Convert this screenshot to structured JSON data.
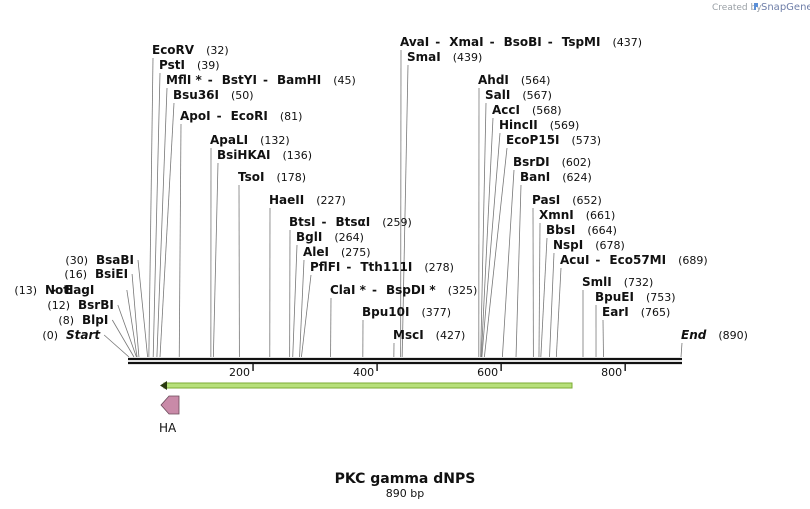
{
  "credit": {
    "created_by": "Created by",
    "brand": "SnapGene"
  },
  "map": {
    "title": "PKC gamma dNPS",
    "length_label": "890 bp",
    "length": 890,
    "ticks": [
      200,
      400,
      600,
      800
    ],
    "features": [
      {
        "name": "HA",
        "type": "arrow",
        "direction": "left",
        "color": "#c98aa8"
      }
    ],
    "orf": {
      "direction": "left",
      "color": "#a4d65e"
    }
  },
  "sites": [
    {
      "lines": [
        {
          "segs": [
            "Start"
          ],
          "italic": true
        }
      ],
      "pos": "(0)",
      "side": "left",
      "bp": 0
    },
    {
      "lines": [
        {
          "segs": [
            "BlpI"
          ]
        }
      ],
      "pos": "(8)",
      "side": "left",
      "bp": 8
    },
    {
      "lines": [
        {
          "segs": [
            "BsrBI"
          ]
        }
      ],
      "pos": "(12)",
      "side": "left",
      "bp": 12
    },
    {
      "lines": [
        {
          "segs": [
            "NotI",
            "EagI"
          ]
        }
      ],
      "pos": "(13)",
      "side": "left",
      "bp": 13
    },
    {
      "lines": [
        {
          "segs": [
            "BsiEI"
          ]
        }
      ],
      "pos": "(16)",
      "side": "left",
      "bp": 16
    },
    {
      "lines": [
        {
          "segs": [
            "BsaBI"
          ]
        }
      ],
      "pos": "(30)",
      "side": "left",
      "bp": 30
    },
    {
      "lines": [
        {
          "segs": [
            "EcoRV"
          ]
        }
      ],
      "pos": "(32)",
      "side": "right",
      "bp": 32
    },
    {
      "lines": [
        {
          "segs": [
            "PstI"
          ]
        }
      ],
      "pos": "(39)",
      "side": "right",
      "bp": 39
    },
    {
      "lines": [
        {
          "segs": [
            "MflI *",
            "BstYI",
            "BamHI"
          ]
        }
      ],
      "pos": "(45)",
      "side": "right",
      "bp": 45
    },
    {
      "lines": [
        {
          "segs": [
            "Bsu36I"
          ]
        }
      ],
      "pos": "(50)",
      "side": "right",
      "bp": 50
    },
    {
      "lines": [
        {
          "segs": [
            "ApoI",
            "EcoRI"
          ]
        }
      ],
      "pos": "(81)",
      "side": "right",
      "bp": 81
    },
    {
      "lines": [
        {
          "segs": [
            "ApaLI"
          ]
        }
      ],
      "pos": "(132)",
      "side": "right",
      "bp": 132
    },
    {
      "lines": [
        {
          "segs": [
            "BsiHKAI"
          ]
        }
      ],
      "pos": "(136)",
      "side": "right",
      "bp": 136
    },
    {
      "lines": [
        {
          "segs": [
            "TsoI"
          ]
        }
      ],
      "pos": "(178)",
      "side": "right",
      "bp": 178
    },
    {
      "lines": [
        {
          "segs": [
            "HaeII"
          ]
        }
      ],
      "pos": "(227)",
      "side": "right",
      "bp": 227
    },
    {
      "lines": [
        {
          "segs": [
            "BtsI",
            "BtsαI"
          ]
        }
      ],
      "pos": "(259)",
      "side": "right",
      "bp": 259
    },
    {
      "lines": [
        {
          "segs": [
            "BglI"
          ]
        }
      ],
      "pos": "(264)",
      "side": "right",
      "bp": 264
    },
    {
      "lines": [
        {
          "segs": [
            "AleI"
          ]
        }
      ],
      "pos": "(275)",
      "side": "right",
      "bp": 275
    },
    {
      "lines": [
        {
          "segs": [
            "PflFI",
            "Tth111I"
          ]
        }
      ],
      "pos": "(278)",
      "side": "right",
      "bp": 278
    },
    {
      "lines": [
        {
          "segs": [
            "ClaI *",
            "BspDI *"
          ]
        }
      ],
      "pos": "(325)",
      "side": "right",
      "bp": 325
    },
    {
      "lines": [
        {
          "segs": [
            "Bpu10I"
          ]
        }
      ],
      "pos": "(377)",
      "side": "right",
      "bp": 377
    },
    {
      "lines": [
        {
          "segs": [
            "MscI"
          ]
        }
      ],
      "pos": "(427)",
      "side": "right",
      "bp": 427
    },
    {
      "lines": [
        {
          "segs": [
            "AvaI",
            "XmaI",
            "BsoBI",
            "TspMI"
          ]
        },
        {
          "segs": [
            "SmaI"
          ],
          "pos": "(439)"
        }
      ],
      "pos": "(437)",
      "side": "right",
      "bp": 438
    },
    {
      "lines": [
        {
          "segs": [
            "AhdI"
          ]
        }
      ],
      "pos": "(564)",
      "side": "right",
      "bp": 564
    },
    {
      "lines": [
        {
          "segs": [
            "SalI"
          ]
        }
      ],
      "pos": "(567)",
      "side": "right",
      "bp": 567
    },
    {
      "lines": [
        {
          "segs": [
            "AccI"
          ]
        }
      ],
      "pos": "(568)",
      "side": "right",
      "bp": 568
    },
    {
      "lines": [
        {
          "segs": [
            "HincII"
          ]
        }
      ],
      "pos": "(569)",
      "side": "right",
      "bp": 569
    },
    {
      "lines": [
        {
          "segs": [
            "EcoP15I"
          ]
        }
      ],
      "pos": "(573)",
      "side": "right",
      "bp": 573
    },
    {
      "lines": [
        {
          "segs": [
            "BsrDI"
          ]
        }
      ],
      "pos": "(602)",
      "side": "right",
      "bp": 602
    },
    {
      "lines": [
        {
          "segs": [
            "BanI"
          ]
        }
      ],
      "pos": "(624)",
      "side": "right",
      "bp": 624
    },
    {
      "lines": [
        {
          "segs": [
            "PasI"
          ]
        }
      ],
      "pos": "(652)",
      "side": "right",
      "bp": 652
    },
    {
      "lines": [
        {
          "segs": [
            "XmnI"
          ]
        }
      ],
      "pos": "(661)",
      "side": "right",
      "bp": 661
    },
    {
      "lines": [
        {
          "segs": [
            "BbsI"
          ]
        }
      ],
      "pos": "(664)",
      "side": "right",
      "bp": 664
    },
    {
      "lines": [
        {
          "segs": [
            "NspI"
          ]
        }
      ],
      "pos": "(678)",
      "side": "right",
      "bp": 678
    },
    {
      "lines": [
        {
          "segs": [
            "AcuI",
            "Eco57MI"
          ]
        }
      ],
      "pos": "(689)",
      "side": "right",
      "bp": 689
    },
    {
      "lines": [
        {
          "segs": [
            "SmlI"
          ]
        }
      ],
      "pos": "(732)",
      "side": "right",
      "bp": 732
    },
    {
      "lines": [
        {
          "segs": [
            "BpuEI"
          ]
        }
      ],
      "pos": "(753)",
      "side": "right",
      "bp": 753
    },
    {
      "lines": [
        {
          "segs": [
            "EarI"
          ]
        }
      ],
      "pos": "(765)",
      "side": "right",
      "bp": 765
    },
    {
      "lines": [
        {
          "segs": [
            "End"
          ],
          "italic": true
        }
      ],
      "pos": "(890)",
      "side": "right",
      "bp": 890
    }
  ]
}
